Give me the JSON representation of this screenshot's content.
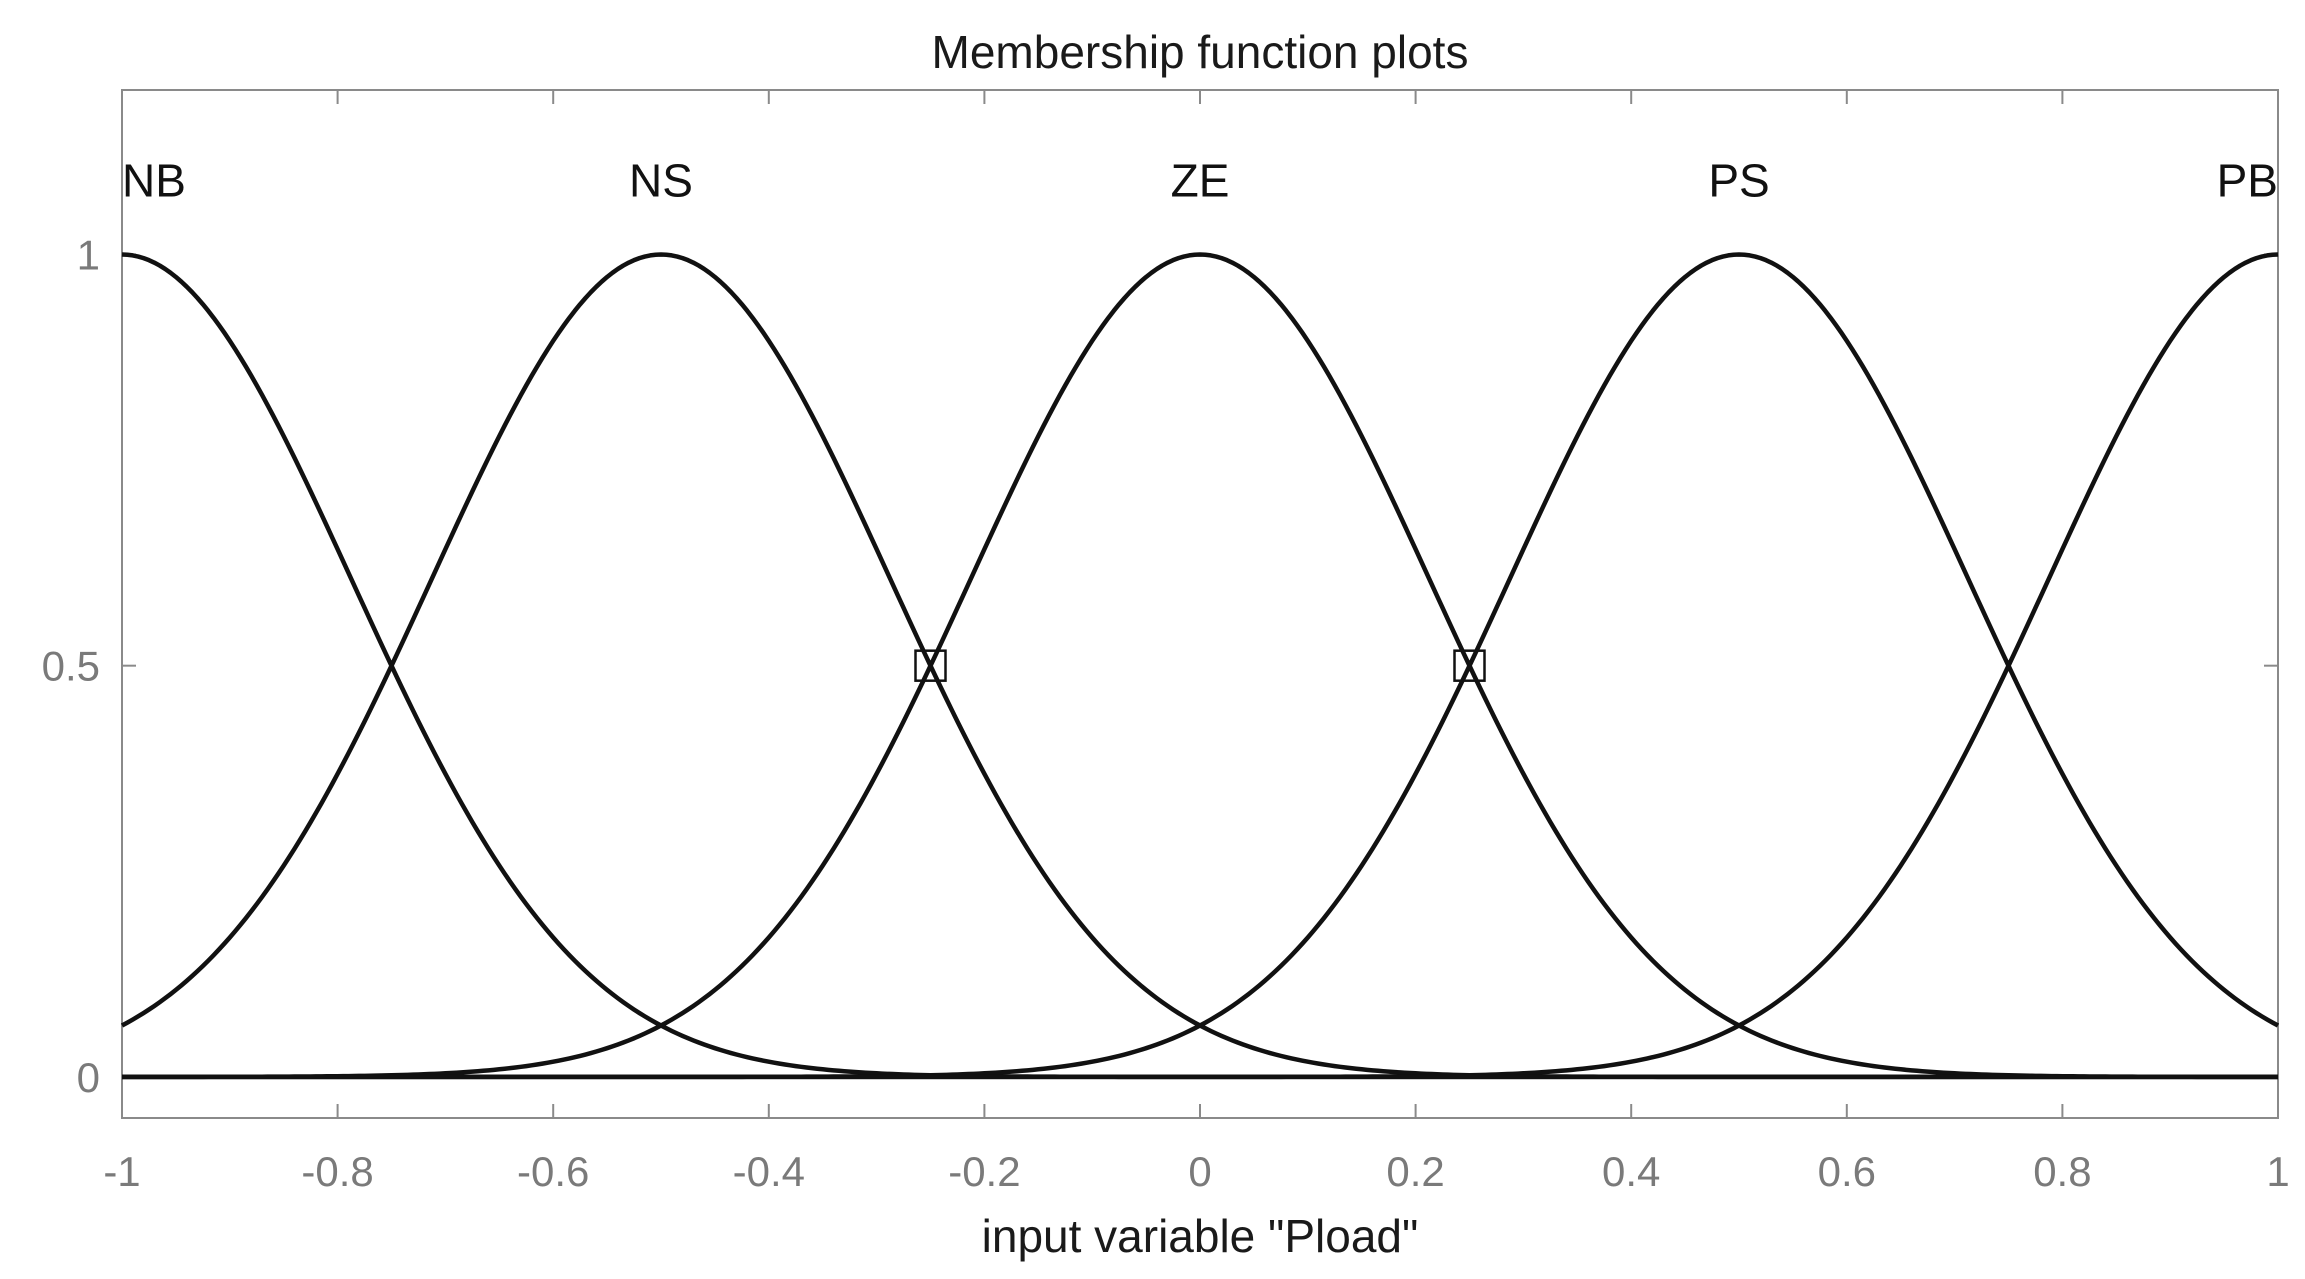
{
  "chart_data": {
    "type": "line",
    "title": "Membership function plots",
    "xlabel": "input variable \"Pload\"",
    "ylabel": "",
    "xlim": [
      -1,
      1
    ],
    "ylim": [
      -0.05,
      1.2
    ],
    "xticks": [
      -1,
      -0.8,
      -0.6,
      -0.4,
      -0.2,
      0,
      0.2,
      0.4,
      0.6,
      0.8,
      1
    ],
    "xtick_labels": [
      "-1",
      "-0.8",
      "-0.6",
      "-0.4",
      "-0.2",
      "0",
      "0.2",
      "0.4",
      "0.6",
      "0.8",
      "1"
    ],
    "yticks": [
      0,
      0.5,
      1
    ],
    "ytick_labels": [
      "0",
      "0.5",
      "1"
    ],
    "grid": false,
    "line_color": "#111111",
    "axis_color": "#8a8a8a",
    "series": [
      {
        "name": "NB",
        "function": "gaussmf",
        "center": -1.0,
        "sigma": 0.2123
      },
      {
        "name": "NS",
        "function": "gaussmf",
        "center": -0.5,
        "sigma": 0.2123
      },
      {
        "name": "ZE",
        "function": "gaussmf",
        "center": 0.0,
        "sigma": 0.2123
      },
      {
        "name": "PS",
        "function": "gaussmf",
        "center": 0.5,
        "sigma": 0.2123
      },
      {
        "name": "PB",
        "function": "gaussmf",
        "center": 1.0,
        "sigma": 0.2123
      }
    ],
    "markers": [
      {
        "x": -0.25,
        "y": 0.5
      },
      {
        "x": 0.25,
        "y": 0.5
      }
    ]
  }
}
